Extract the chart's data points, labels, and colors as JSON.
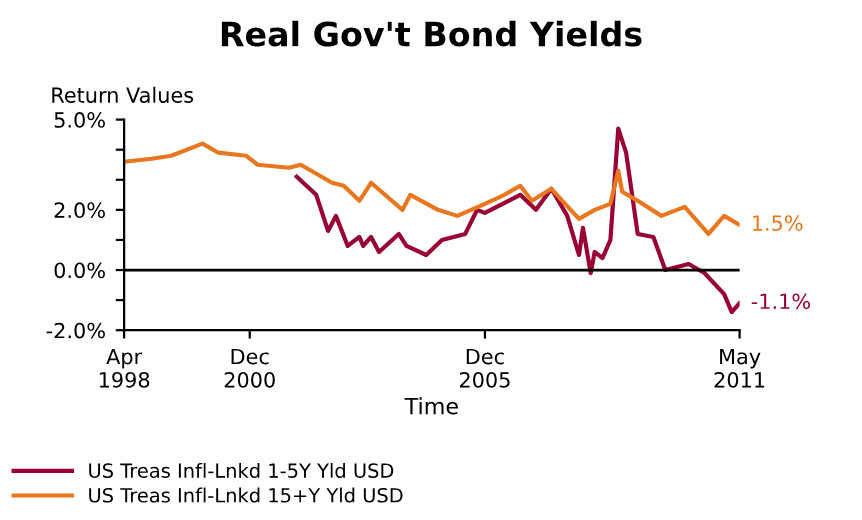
{
  "chart_data": {
    "type": "line",
    "title": "Real Gov't Bond Yields",
    "ylabel": "Return Values",
    "xlabel": "Time",
    "xlim": [
      "1998-04",
      "2011-05"
    ],
    "xticks": [
      {
        "value": "1998-04",
        "label": "Apr\n1998"
      },
      {
        "value": "2000-12",
        "label": "Dec\n2000"
      },
      {
        "value": "2005-12",
        "label": "Dec\n2005"
      },
      {
        "value": "2011-05",
        "label": "May\n2011"
      }
    ],
    "ylim": [
      -2,
      5
    ],
    "yticks": [
      {
        "value": -2,
        "label": "-2.0%"
      },
      {
        "value": -1,
        "label": null
      },
      {
        "value": 0,
        "label": "0.0%"
      },
      {
        "value": 1,
        "label": null
      },
      {
        "value": 2,
        "label": "2.0%"
      },
      {
        "value": 3,
        "label": null
      },
      {
        "value": 4,
        "label": null
      },
      {
        "value": 5,
        "label": "5.0%"
      }
    ],
    "ref_lines": [
      {
        "axis": "y",
        "value": 0,
        "color": "#000000"
      }
    ],
    "grid": false,
    "legend": "bottom",
    "marker": "none",
    "line_style": "solid",
    "series": [
      {
        "name": "US Treas Infl-Lnkd 1-5Y Yld USD",
        "color": "#990033",
        "x": [
          "2001-12",
          "2002-05",
          "2002-08",
          "2002-10",
          "2003-01",
          "2003-04",
          "2003-05",
          "2003-07",
          "2003-09",
          "2004-02",
          "2004-04",
          "2004-09",
          "2005-01",
          "2005-07",
          "2005-10",
          "2005-12",
          "2006-09",
          "2007-01",
          "2007-05",
          "2007-09",
          "2007-12",
          "2008-01",
          "2008-03",
          "2008-04",
          "2008-06",
          "2008-08",
          "2008-10",
          "2008-12",
          "2009-03",
          "2009-07",
          "2009-10",
          "2010-04",
          "2010-08",
          "2011-01",
          "2011-03",
          "2011-05"
        ],
        "values": [
          3.1,
          2.5,
          1.3,
          1.8,
          0.8,
          1.1,
          0.8,
          1.1,
          0.6,
          1.2,
          0.8,
          0.5,
          1.0,
          1.2,
          2.0,
          1.9,
          2.5,
          2.0,
          2.7,
          1.8,
          0.5,
          1.4,
          -0.1,
          0.6,
          0.4,
          1.0,
          4.7,
          3.9,
          1.2,
          1.1,
          0.0,
          0.2,
          -0.1,
          -0.8,
          -1.4,
          -1.1
        ],
        "value_labels": [
          null,
          null,
          null,
          null,
          null,
          null,
          null,
          null,
          null,
          null,
          null,
          null,
          null,
          null,
          null,
          null,
          null,
          null,
          null,
          null,
          null,
          null,
          null,
          null,
          null,
          null,
          null,
          null,
          null,
          null,
          null,
          null,
          null,
          null,
          null,
          "-1.1%"
        ]
      },
      {
        "name": "US Treas Infl-Lnkd 15+Y Yld USD",
        "color": "#e8771f",
        "x": [
          "1998-04",
          "1998-11",
          "1999-04",
          "1999-12",
          "2000-04",
          "2000-11",
          "2001-02",
          "2001-10",
          "2002-01",
          "2002-09",
          "2002-12",
          "2003-04",
          "2003-07",
          "2004-03",
          "2004-05",
          "2004-12",
          "2005-05",
          "2005-12",
          "2006-05",
          "2006-09",
          "2006-12",
          "2007-05",
          "2007-12",
          "2008-04",
          "2008-08",
          "2008-10",
          "2008-11",
          "2009-03",
          "2009-09",
          "2010-03",
          "2010-09",
          "2011-01",
          "2011-05"
        ],
        "values": [
          3.6,
          3.7,
          3.8,
          4.2,
          3.9,
          3.8,
          3.5,
          3.4,
          3.5,
          2.9,
          2.8,
          2.3,
          2.9,
          2.0,
          2.5,
          2.0,
          1.8,
          2.2,
          2.5,
          2.8,
          2.3,
          2.7,
          1.7,
          2.0,
          2.2,
          3.3,
          2.6,
          2.3,
          1.8,
          2.1,
          1.2,
          1.8,
          1.5
        ],
        "value_labels": [
          null,
          null,
          null,
          null,
          null,
          null,
          null,
          null,
          null,
          null,
          null,
          null,
          null,
          null,
          null,
          null,
          null,
          null,
          null,
          null,
          null,
          null,
          null,
          null,
          null,
          null,
          null,
          null,
          null,
          null,
          null,
          null,
          "1.5%"
        ]
      }
    ]
  }
}
